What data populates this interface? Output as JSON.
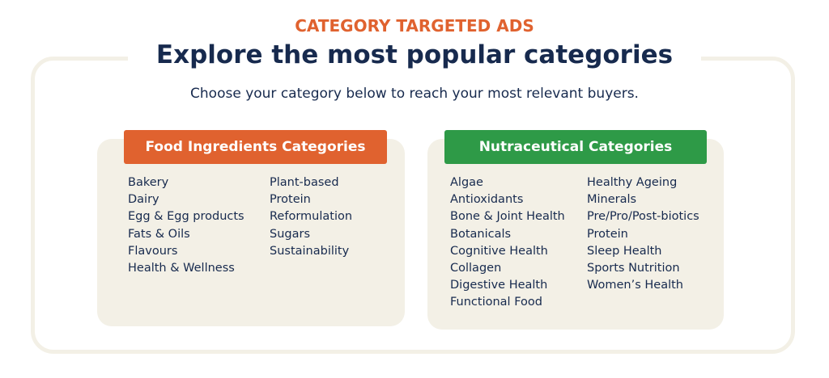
{
  "header": {
    "eyebrow": "CATEGORY TARGETED ADS",
    "title": "Explore the most popular categories",
    "subtitle": "Choose your category below to reach your most relevant buyers."
  },
  "panels": [
    {
      "title": "Food Ingredients Categories",
      "columns": [
        [
          "Bakery",
          "Dairy",
          "Egg & Egg products",
          "Fats & Oils",
          "Flavours",
          "Health & Wellness"
        ],
        [
          "Plant-based",
          "Protein",
          "Reformulation",
          "Sugars",
          "Sustainability"
        ]
      ]
    },
    {
      "title": "Nutraceutical Categories",
      "columns": [
        [
          "Algae",
          "Antioxidants",
          "Bone & Joint Health",
          "Botanicals",
          "Cognitive Health",
          "Collagen",
          "Digestive Health",
          "Functional Food"
        ],
        [
          "Healthy Ageing",
          "Minerals",
          "Pre/Pro/Post-biotics",
          "Protein",
          "Sleep Health",
          "Sports Nutrition",
          "Women’s Health"
        ]
      ]
    }
  ]
}
